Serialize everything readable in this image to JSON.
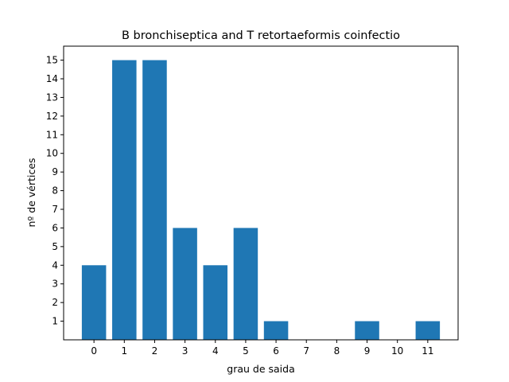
{
  "chart_data": {
    "type": "bar",
    "title": "B bronchiseptica and T retortaeformis coinfectio",
    "xlabel": "grau de saida",
    "ylabel": "nº de vértices",
    "categories": [
      "0",
      "1",
      "2",
      "3",
      "4",
      "5",
      "6",
      "7",
      "8",
      "9",
      "10",
      "11"
    ],
    "values": [
      4,
      15,
      15,
      6,
      4,
      6,
      1,
      0,
      0,
      1,
      0,
      1
    ],
    "xlim": [
      -1,
      12
    ],
    "ylim": [
      0,
      15.75
    ],
    "yticks": [
      "1",
      "2",
      "3",
      "4",
      "5",
      "6",
      "7",
      "8",
      "9",
      "10",
      "11",
      "12",
      "13",
      "14",
      "15"
    ],
    "grid": false,
    "legend": "none",
    "bar_color": "#1f77b4"
  }
}
